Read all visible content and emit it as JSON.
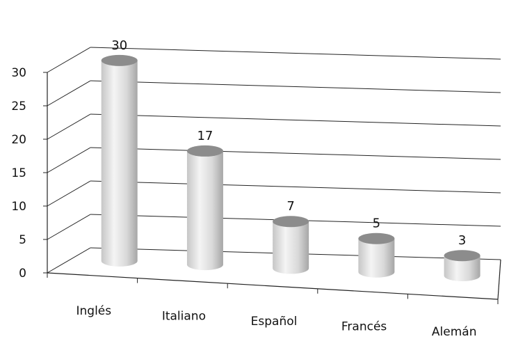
{
  "chart_data": {
    "type": "bar",
    "style": "3d-cylinder",
    "categories": [
      "Inglés",
      "Italiano",
      "Español",
      "Francés",
      "Alemán"
    ],
    "values": [
      30,
      17,
      7,
      5,
      3
    ],
    "ylim": [
      0,
      30
    ],
    "yticks": [
      "0",
      "5",
      "10",
      "15",
      "20",
      "25",
      "30"
    ],
    "data_labels": [
      "30",
      "17",
      "7",
      "5",
      "3"
    ],
    "grid": true,
    "legend": "none",
    "colors": {
      "cylinder_light": "#f2f2f2",
      "cylinder_mid": "#d2d2d2",
      "cylinder_dark": "#a8a8a8",
      "cylinder_top": "#8c8c8c",
      "axis": "#222222",
      "gridline": "#222222"
    }
  }
}
